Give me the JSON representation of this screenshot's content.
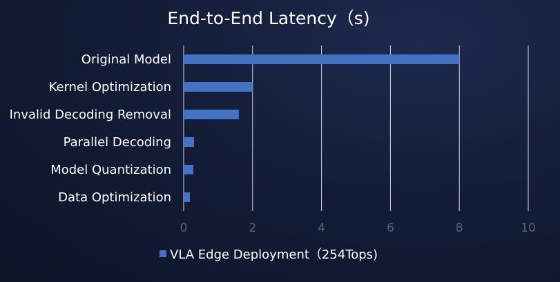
{
  "chart_data": {
    "type": "bar",
    "orientation": "horizontal",
    "title": "End-to-End Latency（s)",
    "categories": [
      "Original Model",
      "Kernel Optimization",
      "Invalid Decoding Removal",
      "Parallel Decoding",
      "Model Quantization",
      "Data Optimization"
    ],
    "series": [
      {
        "name": "VLA Edge Deployment（254Tops)",
        "values": [
          8.0,
          2.0,
          1.6,
          0.3,
          0.28,
          0.18
        ],
        "color": "#4472c4"
      }
    ],
    "xlim": [
      0,
      10
    ],
    "xticks": [
      "0",
      "2",
      "4",
      "6",
      "8",
      "10"
    ],
    "grid": true,
    "legend_position": "bottom"
  },
  "colors": {
    "grid": "#d9d9d9",
    "tick_label": "#5a6278",
    "text": "#ffffff"
  }
}
